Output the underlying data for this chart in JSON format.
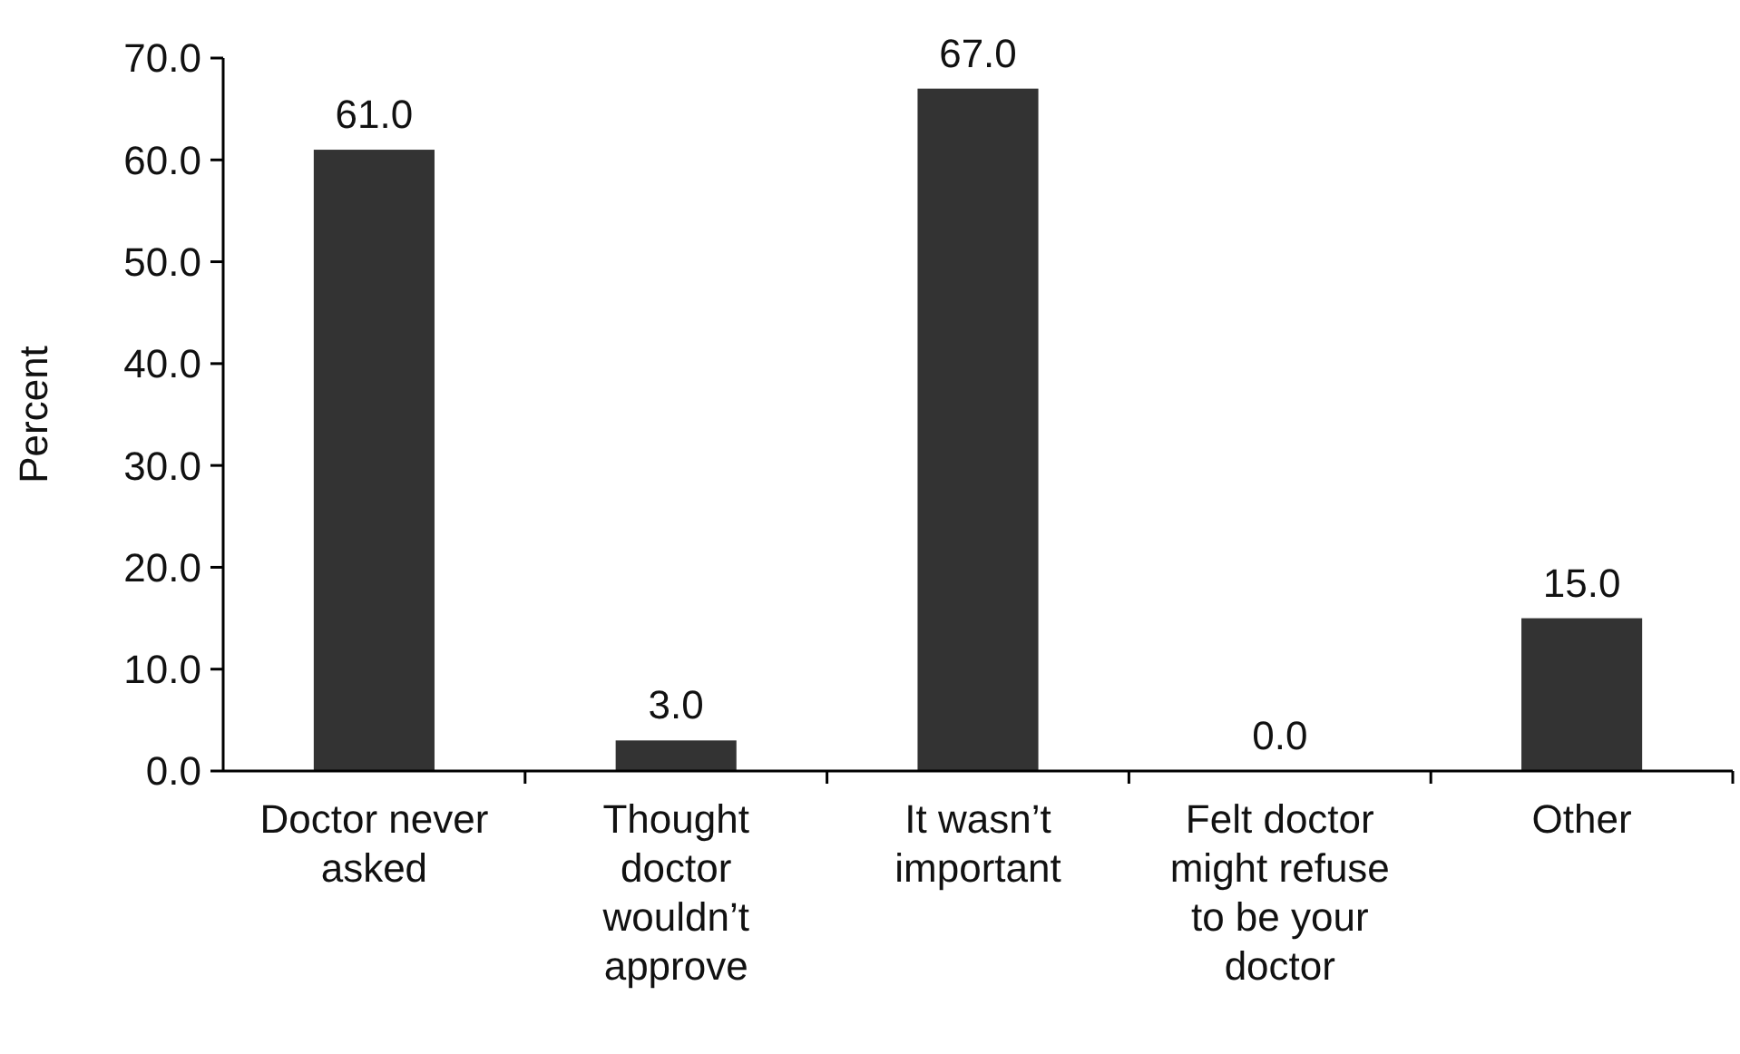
{
  "chart_data": {
    "type": "bar",
    "ylabel": "Percent",
    "categories": [
      "Doctor never asked",
      "Thought doctor wouldn’t approve",
      "It wasn’t important",
      "Felt doctor might refuse to be your doctor",
      "Other"
    ],
    "values": [
      61,
      3,
      67,
      0,
      15
    ],
    "value_labels": [
      "61.0",
      "3.0",
      "67.0",
      "0.0",
      "15.0"
    ],
    "color": "#333333",
    "ylim": [
      0,
      70
    ],
    "yticks": [
      {
        "value": 0,
        "label": "0.0"
      },
      {
        "value": 10,
        "label": "10.0"
      },
      {
        "value": 20,
        "label": "20.0"
      },
      {
        "value": 30,
        "label": "30.0"
      },
      {
        "value": 40,
        "label": "40.0"
      },
      {
        "value": 50,
        "label": "50.0"
      },
      {
        "value": 60,
        "label": "60.0"
      },
      {
        "value": 70,
        "label": "70.0"
      }
    ],
    "grid": false
  }
}
